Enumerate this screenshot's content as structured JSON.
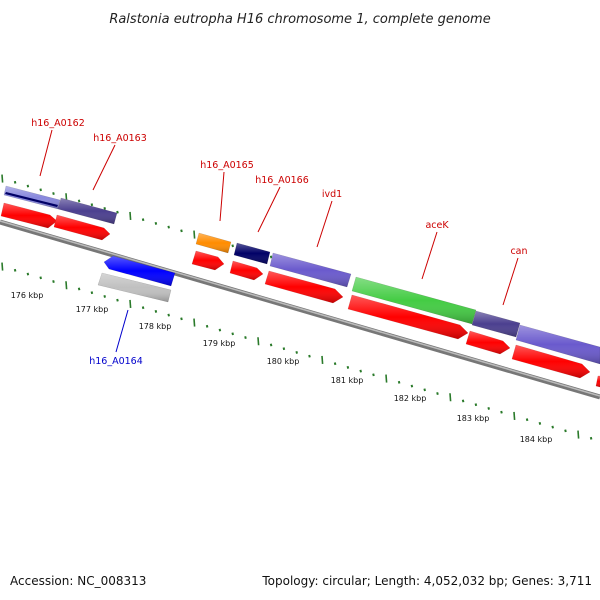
{
  "title": "Ralstonia eutropha H16 chromosome 1, complete genome",
  "footer": {
    "accession": "Accession: NC_008313",
    "summary": "Topology: circular; Length: 4,052,032 bp; Genes: 3,711"
  },
  "colors": {
    "label_forward": "#cc0000",
    "label_reverse": "#0000cc",
    "tick": "#2a7a2a",
    "backbone": "#888888",
    "cds": "#ff0000"
  },
  "gene_labels": [
    {
      "text": "h16_A0162",
      "color": "#cc0000"
    },
    {
      "text": "h16_A0163",
      "color": "#cc0000"
    },
    {
      "text": "h16_A0165",
      "color": "#cc0000"
    },
    {
      "text": "h16_A0166",
      "color": "#cc0000"
    },
    {
      "text": "ivd1",
      "color": "#cc0000"
    },
    {
      "text": "aceK",
      "color": "#cc0000"
    },
    {
      "text": "can",
      "color": "#cc0000"
    },
    {
      "text": "h16_A0164",
      "color": "#0000cc"
    }
  ],
  "scale_labels": [
    "176 kbp",
    "177 kbp",
    "178 kbp",
    "179 kbp",
    "180 kbp",
    "181 kbp",
    "182 kbp",
    "183 kbp",
    "184 kbp"
  ],
  "feature_colors": {
    "gene_a0162": "#8888dd",
    "gene_a0163": "#4b3f8f",
    "gene_a0165": "#ff8c00",
    "gene_a0166": "#000066",
    "gene_ivd1": "#6a5acd",
    "gene_acek": "#44cc44",
    "gene_can": "#4b3f8f",
    "gene_next": "#6a5acd",
    "gene_a0164_gene": "#0000ff",
    "gene_a0164_cds": "#c0c0c0"
  }
}
